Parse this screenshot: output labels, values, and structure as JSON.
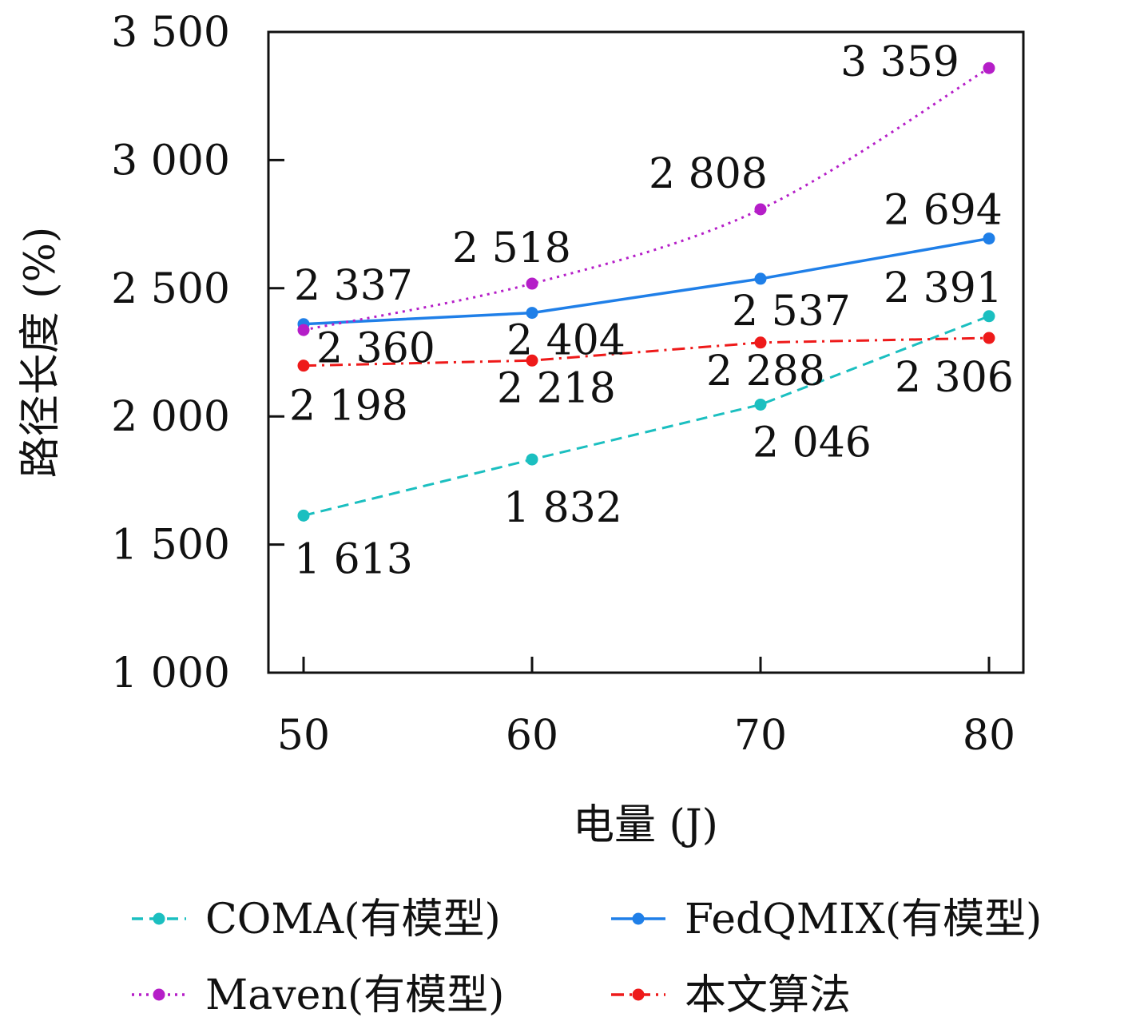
{
  "chart_data": {
    "type": "line",
    "xlabel": "电量 (J)",
    "ylabel": "路径长度 (%)",
    "x": [
      50,
      60,
      70,
      80
    ],
    "x_tick_labels": [
      "50",
      "60",
      "70",
      "80"
    ],
    "ylim": [
      1000,
      3500
    ],
    "y_ticks": [
      1000,
      1500,
      2000,
      2500,
      3000,
      3500
    ],
    "y_tick_labels": [
      "1 000",
      "1 500",
      "2 000",
      "2 500",
      "3 000",
      "3 500"
    ],
    "grid": false,
    "legend_position": "bottom",
    "series": [
      {
        "name": "COMA(有模型)",
        "color": "#1bbfc0",
        "style": "dashed",
        "values": [
          1613,
          1832,
          2046,
          2391
        ],
        "labels": [
          "1 613",
          "1 832",
          "2 046",
          "2 391"
        ]
      },
      {
        "name": "FedQMIX(有模型)",
        "color": "#1f7fe8",
        "style": "solid",
        "values": [
          2360,
          2404,
          2537,
          2694
        ],
        "labels": [
          "2 360",
          "2 404",
          "2 537",
          "2 694"
        ]
      },
      {
        "name": "Maven(有模型)",
        "color": "#b51ec8",
        "style": "dotted",
        "values": [
          2337,
          2518,
          2808,
          3359
        ],
        "labels": [
          "2 337",
          "2 518",
          "2 808",
          "3 359"
        ]
      },
      {
        "name": "本文算法",
        "color": "#ee1a1a",
        "style": "dashdot",
        "values": [
          2198,
          2218,
          2288,
          2306
        ],
        "labels": [
          "2 198",
          "2 218",
          "2 288",
          "2 306"
        ]
      }
    ]
  }
}
